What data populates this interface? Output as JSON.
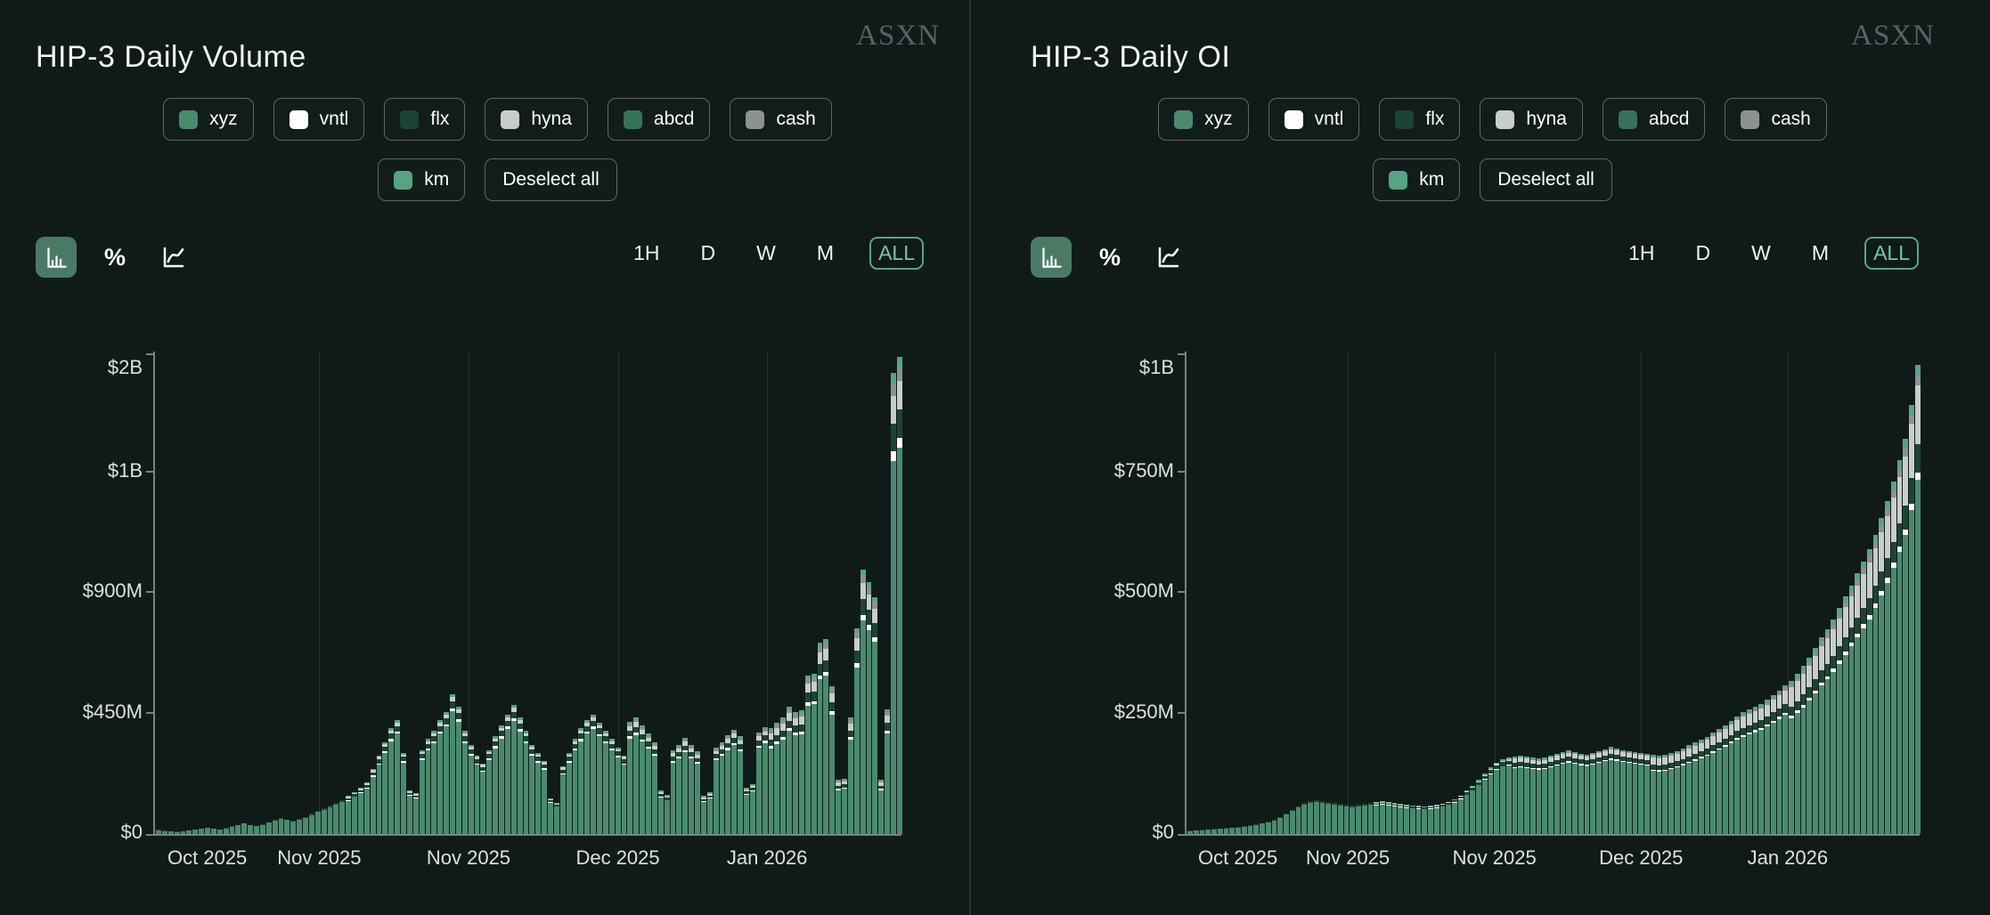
{
  "brand": "ASXN",
  "colors": {
    "background": "#101b19",
    "panel_divider": "#2c3734",
    "axis": "#79827e",
    "gridline": "#28322f",
    "tick_label": "#dde1de",
    "active_icon_bg": "#4a7a66",
    "active_range_border": "#57a687",
    "active_range_text": "#79c5a4",
    "brand_text": "#596165"
  },
  "series_legend": [
    {
      "label": "xyz",
      "color": "#4a8a6e"
    },
    {
      "label": "vntl",
      "color": "#ffffff"
    },
    {
      "label": "flx",
      "color": "#1c4434"
    },
    {
      "label": "hyna",
      "color": "#c9cdca"
    },
    {
      "label": "abcd",
      "color": "#37725a"
    },
    {
      "label": "cash",
      "color": "#8e928f"
    },
    {
      "label": "km",
      "color": "#55a483"
    }
  ],
  "deselect_label": "Deselect all",
  "toolbar_icons": [
    "bar-chart",
    "percent",
    "line-chart"
  ],
  "active_chart_type": "bar-chart",
  "ranges": [
    "1H",
    "D",
    "W",
    "M",
    "ALL"
  ],
  "active_range": "ALL",
  "panels": [
    {
      "title": "HIP-3 Daily Volume"
    },
    {
      "title": "HIP-3 Daily OI"
    }
  ],
  "chart_data": [
    {
      "type": "bar",
      "stacked": true,
      "title": "HIP-3 Daily Volume",
      "unit": "USD millions per day",
      "x_labels": [
        "Oct 2025",
        "Nov 2025",
        "Nov 2025",
        "Dec 2025",
        "Jan 2026"
      ],
      "y_tick_labels": [
        "$2B",
        "$1B",
        "$900M",
        "$450M",
        "$0"
      ],
      "y_max_millions": 1780,
      "legend_position": "top",
      "grid": "vertical",
      "stack_order": [
        "xyz",
        "vntl",
        "flx",
        "hyna",
        "cash",
        "abcd",
        "km"
      ],
      "totals_millions": [
        14,
        11,
        9,
        8,
        10,
        13,
        16,
        20,
        24,
        20,
        17,
        22,
        28,
        34,
        40,
        34,
        30,
        36,
        44,
        52,
        60,
        54,
        48,
        55,
        64,
        74,
        85,
        95,
        105,
        115,
        125,
        140,
        155,
        170,
        190,
        240,
        290,
        340,
        390,
        420,
        300,
        160,
        150,
        310,
        350,
        380,
        420,
        450,
        515,
        470,
        380,
        330,
        290,
        260,
        310,
        360,
        400,
        440,
        475,
        430,
        380,
        330,
        300,
        270,
        130,
        115,
        250,
        300,
        350,
        390,
        420,
        440,
        410,
        380,
        350,
        320,
        290,
        415,
        430,
        400,
        370,
        340,
        160,
        145,
        310,
        330,
        355,
        330,
        305,
        140,
        155,
        320,
        340,
        365,
        385,
        360,
        170,
        185,
        375,
        395,
        390,
        410,
        430,
        470,
        450,
        455,
        585,
        590,
        705,
        720,
        545,
        200,
        205,
        430,
        760,
        975,
        930,
        875,
        200,
        460,
        1700,
        1760
      ],
      "composition_phases": [
        {
          "from": 0,
          "fractions": {
            "xyz": 0.95,
            "flx": 0.05
          }
        },
        {
          "from": 31,
          "fractions": {
            "xyz": 0.88,
            "vntl": 0.02,
            "flx": 0.05,
            "hyna": 0.03,
            "km": 0.02
          }
        },
        {
          "from": 77,
          "fractions": {
            "xyz": 0.85,
            "vntl": 0.02,
            "flx": 0.05,
            "hyna": 0.04,
            "cash": 0.02,
            "km": 0.02
          }
        },
        {
          "from": 100,
          "fractions": {
            "xyz": 0.81,
            "vntl": 0.02,
            "flx": 0.06,
            "hyna": 0.06,
            "cash": 0.03,
            "km": 0.02
          }
        }
      ]
    },
    {
      "type": "bar",
      "stacked": true,
      "title": "HIP-3 Daily OI",
      "unit": "USD millions open interest",
      "x_labels": [
        "Oct 2025",
        "Nov 2025",
        "Nov 2025",
        "Dec 2025",
        "Jan 2026"
      ],
      "y_tick_labels": [
        "$1B",
        "$750M",
        "$500M",
        "$250M",
        "$0"
      ],
      "y_max_millions": 1000,
      "legend_position": "top",
      "grid": "vertical",
      "stack_order": [
        "xyz",
        "vntl",
        "flx",
        "hyna",
        "cash",
        "abcd",
        "km"
      ],
      "totals_millions": [
        6,
        7,
        8,
        9,
        10,
        11,
        12,
        13,
        14,
        16,
        18,
        20,
        23,
        26,
        30,
        35,
        42,
        50,
        58,
        64,
        68,
        70,
        68,
        66,
        64,
        62,
        60,
        59,
        60,
        62,
        64,
        66,
        68,
        66,
        64,
        62,
        60,
        59,
        58,
        57,
        58,
        60,
        63,
        67,
        72,
        80,
        90,
        100,
        112,
        125,
        138,
        148,
        155,
        158,
        160,
        162,
        160,
        158,
        156,
        158,
        162,
        166,
        170,
        173,
        170,
        167,
        165,
        168,
        172,
        176,
        180,
        178,
        174,
        172,
        170,
        168,
        166,
        164,
        162,
        164,
        168,
        172,
        178,
        184,
        190,
        196,
        202,
        210,
        218,
        226,
        235,
        244,
        252,
        258,
        264,
        270,
        278,
        288,
        298,
        308,
        318,
        332,
        348,
        366,
        386,
        408,
        425,
        445,
        468,
        492,
        515,
        540,
        565,
        590,
        620,
        655,
        690,
        730,
        775,
        820,
        890,
        973
      ],
      "composition_phases": [
        {
          "from": 0,
          "fractions": {
            "xyz": 0.95,
            "flx": 0.05
          }
        },
        {
          "from": 31,
          "fractions": {
            "xyz": 0.9,
            "vntl": 0.01,
            "flx": 0.05,
            "hyna": 0.02,
            "km": 0.02
          }
        },
        {
          "from": 54,
          "fractions": {
            "xyz": 0.855,
            "vntl": 0.015,
            "flx": 0.055,
            "hyna": 0.05,
            "cash": 0.01,
            "km": 0.015
          }
        },
        {
          "from": 77,
          "fractions": {
            "xyz": 0.8,
            "vntl": 0.015,
            "flx": 0.06,
            "hyna": 0.09,
            "cash": 0.015,
            "km": 0.02
          }
        },
        {
          "from": 100,
          "fractions": {
            "xyz": 0.755,
            "vntl": 0.015,
            "flx": 0.06,
            "hyna": 0.125,
            "cash": 0.02,
            "km": 0.025
          }
        }
      ]
    }
  ]
}
